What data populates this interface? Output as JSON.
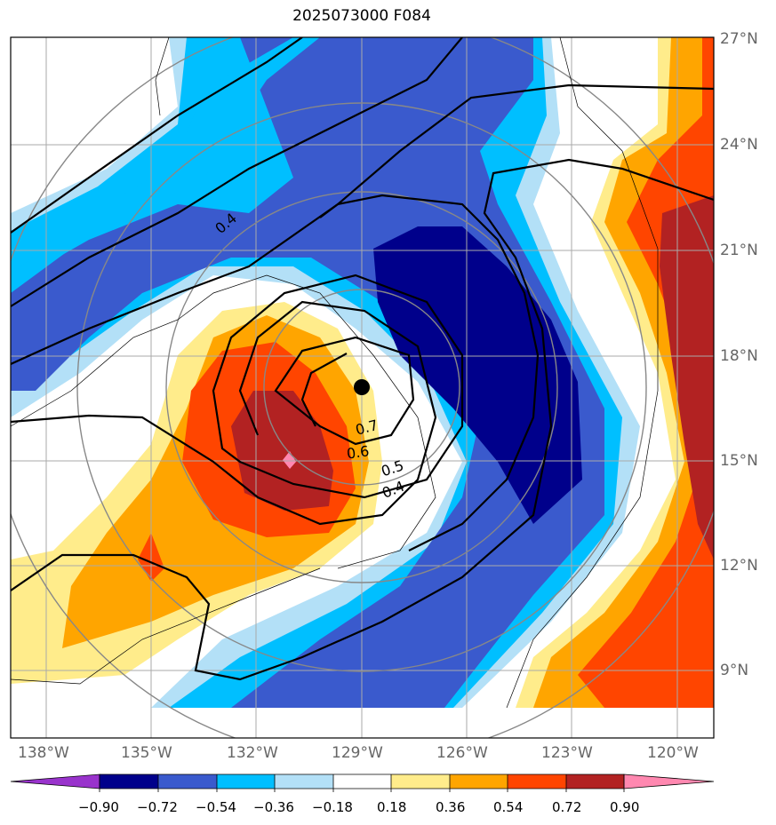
{
  "title": "2025073000 F084",
  "lat_labels": [
    "27°N",
    "24°N",
    "21°N",
    "18°N",
    "15°N",
    "12°N",
    "9°N"
  ],
  "lon_labels": [
    "138°W",
    "135°W",
    "132°W",
    "129°W",
    "126°W",
    "123°W",
    "120°W"
  ],
  "contour_labels": [
    "0.4",
    "0.7",
    "0.6",
    "0.5",
    "0.4"
  ],
  "colorbar": {
    "colors": [
      "#9933cc",
      "#00008b",
      "#3a5acd",
      "#00bfff",
      "#b3e0f7",
      "#ffffff",
      "#ffec8b",
      "#ffa500",
      "#ff4500",
      "#b22222",
      "#ff88b0"
    ],
    "tick_labels": [
      "−0.90",
      "−0.72",
      "−0.54",
      "−0.36",
      "−0.18",
      "0.18",
      "0.36",
      "0.54",
      "0.72",
      "0.90"
    ],
    "levels": [
      -0.9,
      -0.72,
      -0.54,
      -0.36,
      -0.18,
      0.18,
      0.36,
      0.54,
      0.72,
      0.9
    ]
  },
  "storm_center": {
    "lon": -129.0,
    "lat": 17.1
  }
}
